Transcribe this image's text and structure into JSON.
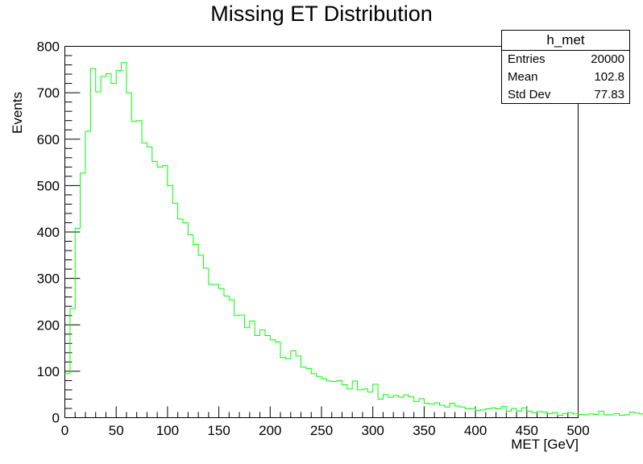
{
  "chart_data": {
    "type": "histogram",
    "title": "Missing ET Distribution",
    "xlabel": "MET [GeV]",
    "ylabel": "Events",
    "xlim": [
      0,
      500
    ],
    "ylim": [
      0,
      800
    ],
    "bin_width": 5,
    "x_ticks": [
      0,
      50,
      100,
      150,
      200,
      250,
      300,
      350,
      400,
      450,
      500
    ],
    "y_ticks": [
      0,
      100,
      200,
      300,
      400,
      500,
      600,
      700,
      800
    ],
    "line_color": "#00ff00",
    "grid": false,
    "values": [
      95,
      235,
      408,
      527,
      617,
      752,
      702,
      735,
      741,
      720,
      748,
      765,
      700,
      638,
      640,
      592,
      583,
      552,
      540,
      543,
      500,
      462,
      428,
      420,
      394,
      373,
      350,
      322,
      287,
      287,
      278,
      262,
      254,
      220,
      221,
      194,
      208,
      177,
      189,
      177,
      168,
      163,
      130,
      127,
      144,
      133,
      109,
      106,
      95,
      89,
      84,
      79,
      78,
      80,
      71,
      62,
      79,
      60,
      62,
      55,
      72,
      40,
      50,
      44,
      48,
      44,
      49,
      45,
      35,
      41,
      31,
      29,
      32,
      27,
      23,
      31,
      25,
      23,
      19,
      20,
      16,
      17,
      19,
      21,
      19,
      24,
      14,
      20,
      14,
      21,
      14,
      11,
      13,
      12,
      9,
      11,
      5,
      9,
      11,
      8,
      7,
      6,
      8,
      7,
      14,
      6,
      6,
      9,
      5,
      6,
      12,
      10,
      8,
      13,
      4,
      5,
      8,
      4,
      7,
      5,
      6,
      10,
      5,
      2,
      6,
      7,
      5,
      4,
      3,
      6,
      5,
      3,
      2,
      1,
      2
    ]
  },
  "stats_box": {
    "name": "h_met",
    "rows": [
      {
        "label": "Entries",
        "value": "20000"
      },
      {
        "label": "Mean",
        "value": "102.8"
      },
      {
        "label": "Std Dev",
        "value": "77.83"
      }
    ]
  }
}
